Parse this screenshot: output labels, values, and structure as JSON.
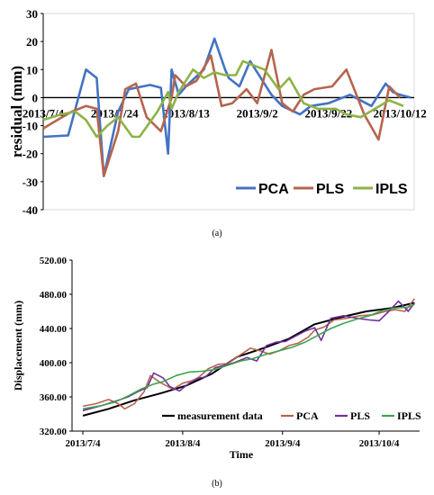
{
  "chart_data": [
    {
      "type": "line",
      "panel_label": "(a)",
      "ylabel": "residual (mm)",
      "xlabel": "",
      "ylim": [
        -40,
        30
      ],
      "yticks": [
        "30",
        "20",
        "10",
        "0",
        "-10",
        "-20",
        "-30",
        "-40"
      ],
      "xtick_labels": [
        "2013/7/4",
        "2013/7/24",
        "2013/8/13",
        "2013/9/2",
        "2013/9/22",
        "2013/10/12"
      ],
      "x_range_days": [
        0,
        104
      ],
      "legend": "bottom-right",
      "grid": false,
      "series": [
        {
          "name": "PCA",
          "color": "#4472C4",
          "x": [
            0,
            7,
            12,
            15,
            17,
            21,
            24,
            30,
            33,
            35,
            36,
            38,
            40,
            45,
            48,
            51,
            52,
            55,
            58,
            64,
            67,
            72,
            75,
            80,
            86,
            92,
            96,
            98,
            100,
            103
          ],
          "y": [
            -14,
            -13.5,
            10,
            7,
            -28,
            -5,
            3,
            4.5,
            3.5,
            -20,
            10,
            1,
            4,
            10,
            21,
            10,
            7,
            4,
            13,
            1,
            -3,
            -6,
            -3,
            -2,
            1,
            -3,
            5,
            2,
            1,
            0
          ]
        },
        {
          "name": "PLS",
          "color": "#B5654E",
          "x": [
            0,
            4,
            8,
            12,
            15,
            17,
            21,
            23,
            26,
            29,
            33,
            36,
            37,
            40,
            43,
            47,
            50,
            53,
            57,
            60,
            64,
            67,
            70,
            73,
            76,
            81,
            85,
            90,
            94,
            97,
            100
          ],
          "y": [
            -11,
            -8,
            -5,
            -3,
            -4,
            -28,
            -12,
            3,
            5,
            -7,
            -12,
            0,
            8,
            4,
            6,
            15,
            -3,
            -2,
            3,
            -2,
            17,
            -2,
            -5,
            1,
            3,
            4,
            10,
            -6,
            -15,
            4,
            0
          ]
        },
        {
          "name": "IPLS",
          "color": "#8DB347",
          "x": [
            0,
            5,
            9,
            12,
            15,
            18,
            21,
            25,
            27,
            32,
            35,
            36,
            38,
            42,
            45,
            48,
            51,
            54,
            56,
            60,
            62,
            66,
            69,
            73,
            77,
            82,
            85,
            89,
            93,
            97,
            101
          ],
          "y": [
            -8,
            -6,
            -5,
            -8,
            -14,
            -10,
            -7,
            -14,
            -14,
            -5,
            2,
            -4,
            2,
            10,
            7,
            9,
            8,
            8,
            13,
            11,
            10,
            3,
            7,
            -2,
            -4,
            -4,
            -6,
            -7,
            -4,
            -1,
            -3
          ]
        }
      ]
    },
    {
      "type": "line",
      "panel_label": "(b)",
      "ylabel": "Displacement  (mm)",
      "xlabel": "Time",
      "ylim": [
        320,
        520
      ],
      "yticks": [
        "520.00",
        "480.00",
        "440.00",
        "400.00",
        "360.00",
        "320.00"
      ],
      "xtick_labels": [
        "2013/7/4",
        "2013/8/4",
        "2013/9/4",
        "2013/10/4"
      ],
      "x_range_days": [
        0,
        104
      ],
      "legend": "bottom",
      "grid": false,
      "series": [
        {
          "name": "measurement data",
          "color": "#000000",
          "x": [
            0,
            8,
            16,
            24,
            32,
            40,
            48,
            56,
            64,
            72,
            80,
            88,
            96,
            103
          ],
          "y": [
            338,
            346,
            356,
            364,
            373,
            387,
            407,
            417,
            428,
            445,
            453,
            460,
            464,
            470
          ]
        },
        {
          "name": "PCA",
          "color": "#B5654E",
          "x": [
            0,
            4,
            8,
            11,
            13,
            16,
            19,
            21,
            24,
            28,
            31,
            34,
            36,
            39,
            42,
            45,
            48,
            52,
            55,
            58,
            61,
            64,
            67,
            70,
            72,
            75,
            78,
            82,
            86,
            90,
            94,
            97,
            100,
            103
          ],
          "y": [
            349,
            352,
            357,
            352,
            346,
            352,
            366,
            385,
            377,
            369,
            376,
            379,
            383,
            393,
            398,
            399,
            407,
            417,
            414,
            410,
            414,
            420,
            423,
            430,
            438,
            442,
            450,
            452,
            455,
            456,
            460,
            462,
            460,
            475
          ]
        },
        {
          "name": "PLS",
          "color": "#7030A0",
          "x": [
            0,
            6,
            11,
            14,
            17,
            20,
            22,
            25,
            27,
            30,
            33,
            36,
            38,
            41,
            44,
            47,
            51,
            54,
            57,
            60,
            63,
            66,
            69,
            72,
            74,
            77,
            81,
            85,
            89,
            92,
            95,
            98,
            101,
            103
          ],
          "y": [
            344,
            350,
            356,
            360,
            366,
            371,
            388,
            382,
            372,
            367,
            376,
            382,
            383,
            394,
            397,
            400,
            406,
            402,
            420,
            424,
            425,
            431,
            437,
            441,
            426,
            452,
            455,
            452,
            450,
            449,
            460,
            472,
            460,
            470
          ]
        },
        {
          "name": "IPLS",
          "color": "#3FA34D",
          "x": [
            0,
            6,
            10,
            14,
            18,
            22,
            25,
            29,
            33,
            37,
            41,
            45,
            49,
            53,
            57,
            61,
            65,
            69,
            73,
            77,
            81,
            85,
            89,
            93,
            97,
            101,
            103
          ],
          "y": [
            346,
            350,
            354,
            361,
            369,
            375,
            378,
            385,
            389,
            390,
            392,
            397,
            402,
            405,
            410,
            414,
            418,
            424,
            432,
            440,
            446,
            451,
            455,
            461,
            464,
            465,
            468
          ]
        }
      ]
    }
  ]
}
